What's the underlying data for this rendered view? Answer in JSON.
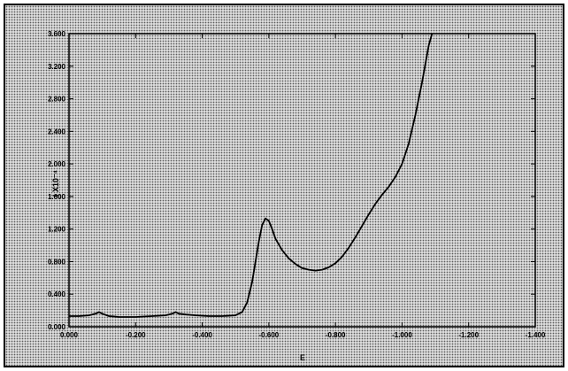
{
  "chart_data": {
    "type": "line",
    "xlabel": "E",
    "ylabel": "I X10⁻⁴",
    "xlim": [
      0.0,
      -1.4
    ],
    "ylim": [
      0.0,
      3.6
    ],
    "grid": false,
    "x_ticks": [
      {
        "value": 0.0,
        "label": "0.000"
      },
      {
        "value": -0.2,
        "label": "-0.200"
      },
      {
        "value": -0.4,
        "label": "-0.400"
      },
      {
        "value": -0.6,
        "label": "-0.600"
      },
      {
        "value": -0.8,
        "label": "-0.800"
      },
      {
        "value": -1.0,
        "label": "-1.000"
      },
      {
        "value": -1.2,
        "label": "-1.200"
      },
      {
        "value": -1.4,
        "label": "-1.400"
      }
    ],
    "y_ticks": [
      {
        "value": 0.0,
        "label": "0.000"
      },
      {
        "value": 0.4,
        "label": "0.400"
      },
      {
        "value": 0.8,
        "label": "0.800"
      },
      {
        "value": 1.2,
        "label": "1.200"
      },
      {
        "value": 1.6,
        "label": "1.600"
      },
      {
        "value": 2.0,
        "label": "2.000"
      },
      {
        "value": 2.4,
        "label": "2.400"
      },
      {
        "value": 2.8,
        "label": "2.800"
      },
      {
        "value": 3.2,
        "label": "3.200"
      },
      {
        "value": 3.6,
        "label": "3.600"
      }
    ],
    "series": [
      {
        "color": "#000000",
        "points": [
          [
            0.0,
            0.13
          ],
          [
            -0.03,
            0.13
          ],
          [
            -0.06,
            0.14
          ],
          [
            -0.08,
            0.16
          ],
          [
            -0.09,
            0.18
          ],
          [
            -0.1,
            0.16
          ],
          [
            -0.12,
            0.13
          ],
          [
            -0.15,
            0.12
          ],
          [
            -0.2,
            0.12
          ],
          [
            -0.25,
            0.13
          ],
          [
            -0.29,
            0.14
          ],
          [
            -0.31,
            0.16
          ],
          [
            -0.32,
            0.18
          ],
          [
            -0.33,
            0.16
          ],
          [
            -0.35,
            0.15
          ],
          [
            -0.38,
            0.14
          ],
          [
            -0.42,
            0.13
          ],
          [
            -0.46,
            0.13
          ],
          [
            -0.5,
            0.14
          ],
          [
            -0.52,
            0.18
          ],
          [
            -0.535,
            0.3
          ],
          [
            -0.55,
            0.55
          ],
          [
            -0.56,
            0.8
          ],
          [
            -0.57,
            1.05
          ],
          [
            -0.58,
            1.25
          ],
          [
            -0.59,
            1.33
          ],
          [
            -0.6,
            1.3
          ],
          [
            -0.61,
            1.2
          ],
          [
            -0.62,
            1.08
          ],
          [
            -0.64,
            0.94
          ],
          [
            -0.66,
            0.84
          ],
          [
            -0.68,
            0.77
          ],
          [
            -0.7,
            0.72
          ],
          [
            -0.72,
            0.7
          ],
          [
            -0.74,
            0.69
          ],
          [
            -0.76,
            0.7
          ],
          [
            -0.78,
            0.73
          ],
          [
            -0.8,
            0.78
          ],
          [
            -0.82,
            0.86
          ],
          [
            -0.84,
            0.97
          ],
          [
            -0.86,
            1.1
          ],
          [
            -0.88,
            1.24
          ],
          [
            -0.9,
            1.38
          ],
          [
            -0.92,
            1.51
          ],
          [
            -0.94,
            1.62
          ],
          [
            -0.96,
            1.72
          ],
          [
            -0.98,
            1.84
          ],
          [
            -1.0,
            2.0
          ],
          [
            -1.02,
            2.25
          ],
          [
            -1.04,
            2.6
          ],
          [
            -1.06,
            3.0
          ],
          [
            -1.08,
            3.45
          ],
          [
            -1.09,
            3.62
          ]
        ]
      }
    ]
  }
}
